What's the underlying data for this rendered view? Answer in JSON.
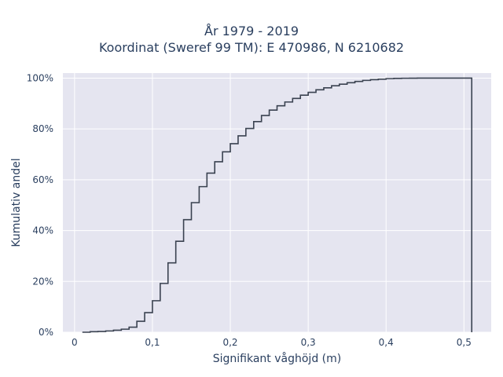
{
  "chart_data": {
    "type": "line",
    "step": "post",
    "title_lines": [
      "År 1979 - 2019",
      "Koordinat (Sweref 99 TM): E 470986, N 6210682"
    ],
    "xlabel": "Signifikant våghöjd (m)",
    "ylabel": "Kumulativ andel",
    "xlim": [
      -0.015,
      0.535
    ],
    "ylim": [
      0,
      1.02
    ],
    "x_ticks": [
      0,
      0.1,
      0.2,
      0.3,
      0.4,
      0.5
    ],
    "x_tick_labels": [
      "0",
      "0,1",
      "0,2",
      "0,3",
      "0,4",
      "0,5"
    ],
    "y_ticks": [
      0,
      0.2,
      0.4,
      0.6,
      0.8,
      1.0
    ],
    "y_tick_labels": [
      "0%",
      "20%",
      "40%",
      "60%",
      "80%",
      "100%"
    ],
    "grid": true,
    "background_color": "#e5e5f0",
    "line_color": "#3a4250",
    "series": [
      {
        "x": [
          0.01,
          0.02,
          0.03,
          0.04,
          0.05,
          0.06,
          0.07,
          0.08,
          0.09,
          0.1,
          0.11,
          0.12,
          0.13,
          0.14,
          0.15,
          0.16,
          0.17,
          0.18,
          0.19,
          0.2,
          0.21,
          0.22,
          0.23,
          0.24,
          0.25,
          0.26,
          0.27,
          0.28,
          0.29,
          0.3,
          0.31,
          0.32,
          0.33,
          0.34,
          0.35,
          0.36,
          0.37,
          0.38,
          0.39,
          0.4,
          0.41,
          0.42,
          0.43,
          0.44,
          0.45,
          0.46,
          0.47,
          0.48,
          0.49,
          0.5,
          0.51
        ],
        "y": [
          0.0,
          0.002,
          0.003,
          0.005,
          0.008,
          0.012,
          0.02,
          0.043,
          0.077,
          0.124,
          0.192,
          0.273,
          0.358,
          0.443,
          0.51,
          0.573,
          0.626,
          0.671,
          0.71,
          0.742,
          0.773,
          0.802,
          0.829,
          0.853,
          0.874,
          0.891,
          0.906,
          0.92,
          0.933,
          0.944,
          0.954,
          0.962,
          0.97,
          0.976,
          0.982,
          0.987,
          0.991,
          0.994,
          0.996,
          0.998,
          0.999,
          0.9995,
          0.9998,
          1.0,
          1.0,
          1.0,
          1.0,
          1.0,
          1.0,
          1.0,
          1.0
        ]
      }
    ]
  }
}
